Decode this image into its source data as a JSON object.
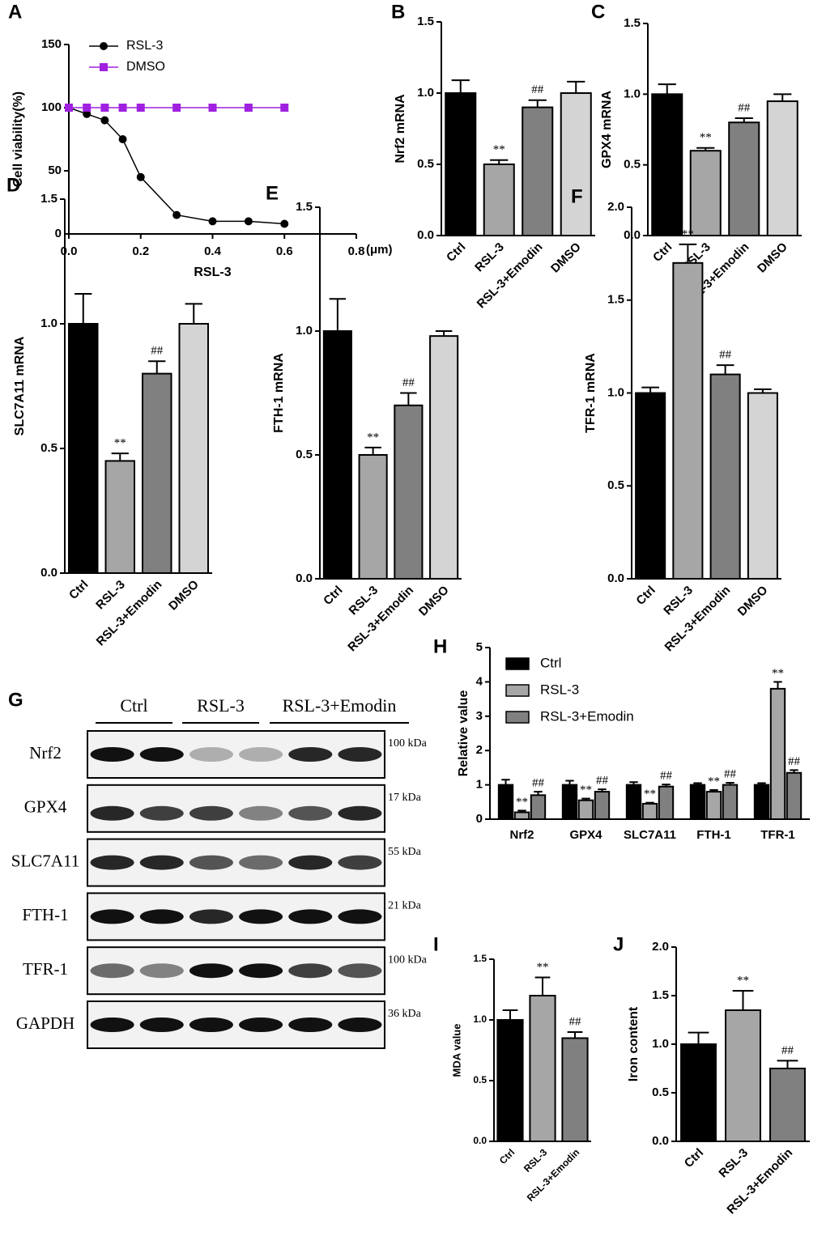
{
  "chart_data": [
    {
      "type": "line",
      "panel": "A",
      "xlabel": "RSL-3",
      "xunit": "(μm)",
      "ylabel": "Cell viability(%)",
      "x": [
        0,
        0.05,
        0.1,
        0.15,
        0.2,
        0.3,
        0.4,
        0.5,
        0.6
      ],
      "series": [
        {
          "name": "RSL-3",
          "color": "#000000",
          "marker": "circle",
          "values": [
            100,
            95,
            90,
            75,
            45,
            15,
            10,
            10,
            8
          ]
        },
        {
          "name": "DMSO",
          "color": "#a020e0",
          "marker": "square",
          "values": [
            100,
            100,
            100,
            100,
            100,
            100,
            100,
            100,
            100
          ]
        }
      ],
      "xlim": [
        0,
        0.8
      ],
      "xticks": [
        {
          "value": 0,
          "label": "0.0"
        },
        {
          "value": 0.2,
          "label": "0.2"
        },
        {
          "value": 0.4,
          "label": "0.4"
        },
        {
          "value": 0.6,
          "label": "0.6"
        },
        {
          "value": 0.8,
          "label": "0.8"
        }
      ],
      "ylim": [
        0,
        150
      ],
      "yticks": [
        0,
        50,
        100,
        150
      ],
      "legend": "top-left"
    },
    {
      "type": "bar",
      "panel": "B",
      "ylabel": "Nrf2 mRNA",
      "categories": [
        "Ctrl",
        "RSL-3",
        "RSL-3+Emodin",
        "DMSO"
      ],
      "values": [
        1.0,
        0.5,
        0.9,
        1.0
      ],
      "errors": [
        0.09,
        0.03,
        0.05,
        0.08
      ],
      "marks": [
        null,
        "**",
        "##",
        null
      ],
      "colors": [
        "#000000",
        "#a6a6a6",
        "#808080",
        "#d4d4d4"
      ],
      "ylim": [
        0,
        1.5
      ],
      "yticks": [
        {
          "value": 0,
          "label": "0.0"
        },
        {
          "value": 0.5,
          "label": "0.5"
        },
        {
          "value": 1,
          "label": "1.0"
        },
        {
          "value": 1.5,
          "label": "1.5"
        }
      ]
    },
    {
      "type": "bar",
      "panel": "C",
      "ylabel": "GPX4 mRNA",
      "categories": [
        "Ctrl",
        "RSL-3",
        "RSL-3+Emodin",
        "DMSO"
      ],
      "values": [
        1.0,
        0.6,
        0.8,
        0.95
      ],
      "errors": [
        0.07,
        0.02,
        0.03,
        0.05
      ],
      "marks": [
        null,
        "**",
        "##",
        null
      ],
      "colors": [
        "#000000",
        "#a6a6a6",
        "#808080",
        "#d4d4d4"
      ],
      "ylim": [
        0,
        1.5
      ],
      "yticks": [
        {
          "value": 0,
          "label": "0.0"
        },
        {
          "value": 0.5,
          "label": "0.5"
        },
        {
          "value": 1,
          "label": "1.0"
        },
        {
          "value": 1.5,
          "label": "1.5"
        }
      ]
    },
    {
      "type": "bar",
      "panel": "D",
      "ylabel": "SLC7A11 mRNA",
      "categories": [
        "Ctrl",
        "RSL-3",
        "RSL-3+Emodin",
        "DMSO"
      ],
      "values": [
        1.0,
        0.45,
        0.8,
        1.0
      ],
      "errors": [
        0.12,
        0.03,
        0.05,
        0.08
      ],
      "marks": [
        null,
        "**",
        "##",
        null
      ],
      "colors": [
        "#000000",
        "#a6a6a6",
        "#808080",
        "#d4d4d4"
      ],
      "ylim": [
        0,
        1.5
      ],
      "yticks": [
        {
          "value": 0,
          "label": "0.0"
        },
        {
          "value": 0.5,
          "label": "0.5"
        },
        {
          "value": 1,
          "label": "1.0"
        },
        {
          "value": 1.5,
          "label": "1.5"
        }
      ]
    },
    {
      "type": "bar",
      "panel": "E",
      "ylabel": "FTH-1 mRNA",
      "categories": [
        "Ctrl",
        "RSL-3",
        "RSL-3+Emodin",
        "DMSO"
      ],
      "values": [
        1.0,
        0.5,
        0.7,
        0.98
      ],
      "errors": [
        0.13,
        0.03,
        0.05,
        0.02
      ],
      "marks": [
        null,
        "**",
        "##",
        null
      ],
      "colors": [
        "#000000",
        "#a6a6a6",
        "#808080",
        "#d4d4d4"
      ],
      "ylim": [
        0,
        1.5
      ],
      "yticks": [
        {
          "value": 0,
          "label": "0.0"
        },
        {
          "value": 0.5,
          "label": "0.5"
        },
        {
          "value": 1,
          "label": "1.0"
        },
        {
          "value": 1.5,
          "label": "1.5"
        }
      ]
    },
    {
      "type": "bar",
      "panel": "F",
      "ylabel": "TFR-1  mRNA",
      "categories": [
        "Ctrl",
        "RSL-3",
        "RSL-3+Emodin",
        "DMSO"
      ],
      "values": [
        1.0,
        1.7,
        1.1,
        1.0
      ],
      "errors": [
        0.03,
        0.1,
        0.05,
        0.02
      ],
      "marks": [
        null,
        "**",
        "##",
        null
      ],
      "colors": [
        "#000000",
        "#a6a6a6",
        "#808080",
        "#d4d4d4"
      ],
      "ylim": [
        0,
        2
      ],
      "yticks": [
        {
          "value": 0,
          "label": "0.0"
        },
        {
          "value": 0.5,
          "label": "0.5"
        },
        {
          "value": 1,
          "label": "1.0"
        },
        {
          "value": 1.5,
          "label": "1.5"
        },
        {
          "value": 2,
          "label": "2.0"
        }
      ]
    },
    {
      "type": "grouped_bar",
      "panel": "H",
      "ylabel": "Relative value",
      "categories": [
        "Nrf2",
        "GPX4",
        "SLC7A11",
        "FTH-1",
        "TFR-1"
      ],
      "series": [
        {
          "name": "Ctrl",
          "color": "#000000",
          "values": [
            1,
            1,
            1,
            1,
            1
          ],
          "errors": [
            0.15,
            0.12,
            0.08,
            0.05,
            0.05
          ]
        },
        {
          "name": "RSL-3",
          "color": "#a6a6a6",
          "values": [
            0.2,
            0.55,
            0.45,
            0.8,
            3.8
          ],
          "errors": [
            0.05,
            0.05,
            0.03,
            0.05,
            0.2
          ],
          "marks": [
            "**",
            "**",
            "**",
            "**",
            "**"
          ]
        },
        {
          "name": "RSL-3+Emodin",
          "color": "#808080",
          "values": [
            0.7,
            0.8,
            0.95,
            1.0,
            1.35
          ],
          "errors": [
            0.1,
            0.07,
            0.06,
            0.06,
            0.08
          ],
          "marks": [
            "##",
            "##",
            "##",
            "##",
            "##"
          ]
        }
      ],
      "ylim": [
        0,
        5
      ],
      "yticks": [
        0,
        1,
        2,
        3,
        4,
        5
      ],
      "legend": "top-left"
    },
    {
      "type": "bar",
      "panel": "I",
      "ylabel": "MDA value",
      "categories": [
        "Ctrl",
        "RSL-3",
        "RSL-3+Emodin"
      ],
      "values": [
        1.0,
        1.2,
        0.85
      ],
      "errors": [
        0.08,
        0.15,
        0.05
      ],
      "marks": [
        null,
        "**",
        "##"
      ],
      "colors": [
        "#000000",
        "#a6a6a6",
        "#808080"
      ],
      "ylim": [
        0,
        1.5
      ],
      "yticks": [
        {
          "value": 0,
          "label": "0.0"
        },
        {
          "value": 0.5,
          "label": "0.5"
        },
        {
          "value": 1,
          "label": "1.0"
        },
        {
          "value": 1.5,
          "label": "1.5"
        }
      ]
    },
    {
      "type": "bar",
      "panel": "J",
      "ylabel": "Iron content",
      "categories": [
        "Ctrl",
        "RSL-3",
        "RSL-3+Emodin"
      ],
      "values": [
        1.0,
        1.35,
        0.75
      ],
      "errors": [
        0.12,
        0.2,
        0.08
      ],
      "marks": [
        null,
        "**",
        "##"
      ],
      "colors": [
        "#000000",
        "#a6a6a6",
        "#808080"
      ],
      "ylim": [
        0,
        2
      ],
      "yticks": [
        {
          "value": 0,
          "label": "0.0"
        },
        {
          "value": 0.5,
          "label": "0.5"
        },
        {
          "value": 1,
          "label": "1.0"
        },
        {
          "value": 1.5,
          "label": "1.5"
        },
        {
          "value": 2,
          "label": "2.0"
        }
      ]
    }
  ],
  "blot": {
    "panel": "G",
    "groups": [
      "Ctrl",
      "RSL-3",
      "RSL-3+Emodin"
    ],
    "proteins": [
      "Nrf2",
      "GPX4",
      "SLC7A11",
      "FTH-1",
      "TFR-1",
      "GAPDH"
    ],
    "sizes": [
      "100 kDa",
      "17 kDa",
      "55 kDa",
      "21 kDa",
      "100 kDa",
      "36 kDa"
    ]
  }
}
